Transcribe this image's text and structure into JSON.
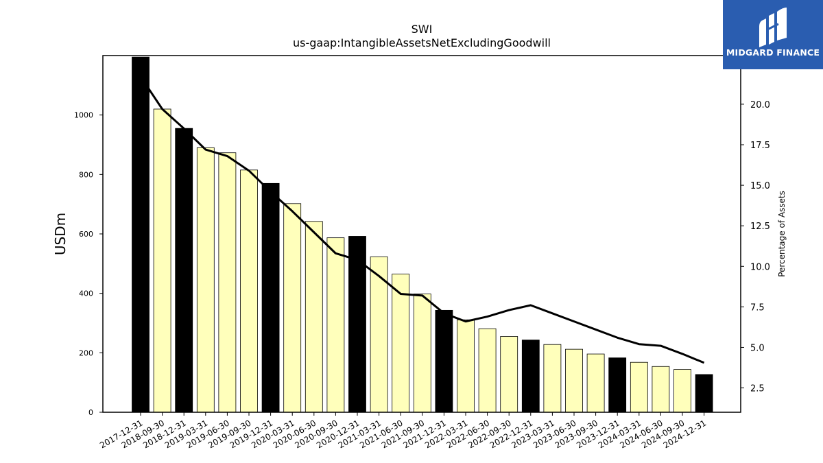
{
  "brand": {
    "name": "MIDGARD FINANCE",
    "bg_color": "#2a5db0",
    "icon": "midgard-m-logo-icon"
  },
  "chart_data": {
    "type": "bar",
    "title": "SWI",
    "subtitle": "us-gaap:IntangibleAssetsNetExcludingGoodwill",
    "ylabel": "USDm",
    "y2label": "Percentage of Assets",
    "ylim": [
      0,
      1200
    ],
    "y2lim": [
      1.0,
      23.0
    ],
    "yticks": [
      0,
      200,
      400,
      600,
      800,
      1000
    ],
    "y2ticks": [
      2.5,
      5.0,
      7.5,
      10.0,
      12.5,
      15.0,
      17.5,
      20.0
    ],
    "grid": false,
    "colors": {
      "annual_bar": "#000000",
      "quarter_bar": "#ffffbb",
      "line": "#000000"
    },
    "categories": [
      "2017-12-31",
      "2018-09-30",
      "2018-12-31",
      "2019-03-31",
      "2019-06-30",
      "2019-09-30",
      "2019-12-31",
      "2020-03-31",
      "2020-06-30",
      "2020-09-30",
      "2020-12-31",
      "2021-03-31",
      "2021-06-30",
      "2021-09-30",
      "2021-12-31",
      "2022-03-31",
      "2022-06-30",
      "2022-09-30",
      "2022-12-31",
      "2023-03-31",
      "2023-06-30",
      "2023-09-30",
      "2023-12-31",
      "2024-03-31",
      "2024-06-30",
      "2024-09-30",
      "2024-12-31"
    ],
    "series": [
      {
        "kind": "bar",
        "axis": "left",
        "values": [
          1195,
          1020,
          955,
          890,
          873,
          815,
          770,
          702,
          642,
          587,
          592,
          523,
          465,
          398,
          343,
          311,
          281,
          255,
          243,
          228,
          212,
          196,
          183,
          168,
          154,
          144,
          127
        ],
        "annual": [
          true,
          false,
          true,
          false,
          false,
          false,
          true,
          false,
          false,
          false,
          true,
          false,
          false,
          false,
          true,
          false,
          false,
          false,
          true,
          false,
          false,
          false,
          true,
          false,
          false,
          false,
          true
        ]
      },
      {
        "kind": "line",
        "axis": "right",
        "values": [
          21.7,
          19.7,
          18.5,
          17.2,
          16.8,
          15.9,
          14.6,
          13.4,
          12.1,
          10.8,
          10.4,
          9.4,
          8.3,
          8.2,
          7.1,
          6.6,
          6.9,
          7.3,
          7.6,
          7.1,
          6.6,
          6.1,
          5.6,
          5.2,
          5.1,
          4.6,
          4.05
        ]
      }
    ]
  }
}
